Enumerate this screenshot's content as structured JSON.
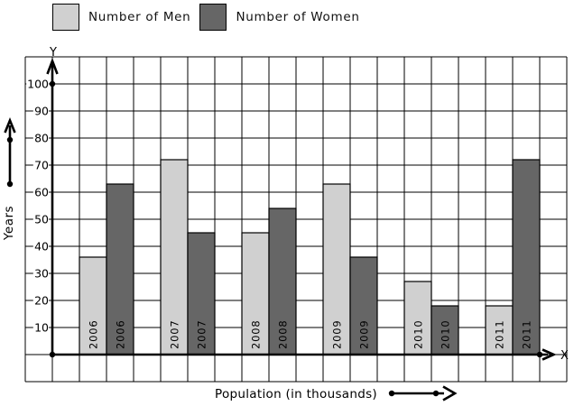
{
  "chart_data": {
    "type": "bar",
    "title": "",
    "categories": [
      "2006",
      "2007",
      "2008",
      "2009",
      "2010",
      "2011"
    ],
    "series": [
      {
        "name": "Number of Men",
        "color": "#d0d0d0",
        "label_color": "#111111",
        "values": [
          36,
          72,
          45,
          63,
          27,
          18
        ]
      },
      {
        "name": "Number of Women",
        "color": "#666666",
        "label_color": "#3a3a3a",
        "values": [
          63,
          45,
          54,
          36,
          18,
          72
        ]
      }
    ],
    "xlabel": "Population (in thousands)",
    "ylabel": "Years",
    "yticks": [
      10,
      20,
      30,
      40,
      50,
      60,
      70,
      80,
      90,
      100
    ],
    "ylim": [
      0,
      110
    ],
    "grid": true,
    "legend_position": "top-left",
    "axis_letters": {
      "x": "X",
      "y": "Y"
    }
  }
}
